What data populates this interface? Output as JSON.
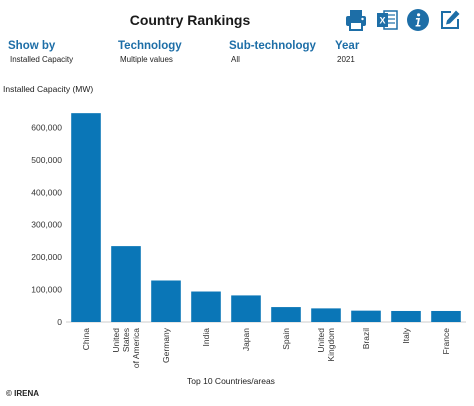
{
  "header": {
    "title": "Country Rankings",
    "icons": [
      "printer-icon",
      "excel-icon",
      "info-icon",
      "edit-icon"
    ]
  },
  "filters": [
    {
      "label": "Show by",
      "value": "Installed Capacity"
    },
    {
      "label": "Technology",
      "value": "Multiple values"
    },
    {
      "label": "Sub-technology",
      "value": "All"
    },
    {
      "label": "Year",
      "value": "2021"
    }
  ],
  "colors": {
    "bar": "#0a76b7",
    "accent": "#1d6ea7"
  },
  "chart_data": {
    "type": "bar",
    "ylabel": "Installed Capacity (MW)",
    "xlabel": "Top 10 Countries/areas",
    "categories": [
      "China",
      "United States of America",
      "Germany",
      "India",
      "Japan",
      "Spain",
      "United Kingdom",
      "Brazil",
      "Italy",
      "France"
    ],
    "category_lines": [
      [
        "China"
      ],
      [
        "United",
        "States",
        "of America"
      ],
      [
        "Germany"
      ],
      [
        "India"
      ],
      [
        "Japan"
      ],
      [
        "Spain"
      ],
      [
        "United",
        "Kingdom"
      ],
      [
        "Brazil"
      ],
      [
        "Italy"
      ],
      [
        "France"
      ]
    ],
    "values": [
      644000,
      234000,
      128000,
      94000,
      82000,
      46000,
      42000,
      35000,
      34000,
      34000
    ],
    "ylim": [
      0,
      700000
    ],
    "yticks": [
      0,
      100000,
      200000,
      300000,
      400000,
      500000,
      600000
    ],
    "ytick_labels": [
      "0",
      "100,000",
      "200,000",
      "300,000",
      "400,000",
      "500,000",
      "600,000"
    ],
    "grid": false
  },
  "footer": {
    "copyright": "© IRENA"
  }
}
